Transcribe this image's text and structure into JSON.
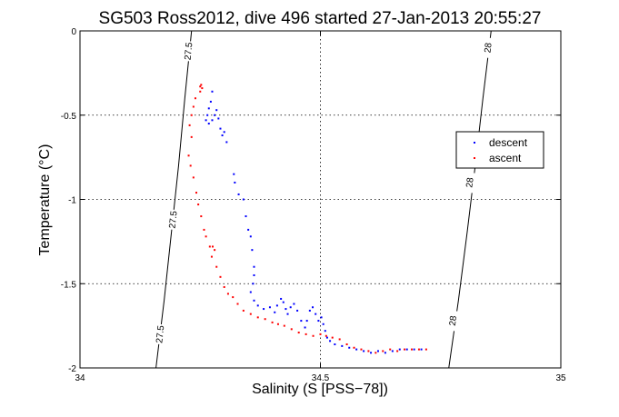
{
  "chart_data": {
    "type": "scatter",
    "title": "SG503 Ross2012, dive 496 started 27-Jan-2013 20:55:27",
    "xlabel": "Salinity (S [PSS−78])",
    "ylabel": "Temperature (°C)",
    "xlim": [
      34,
      35
    ],
    "ylim": [
      -2,
      0
    ],
    "x_tick_labels": [
      "34",
      "34.5",
      "35"
    ],
    "y_tick_labels": [
      "0",
      "-0.5",
      "-1",
      "-1.5",
      "-2"
    ],
    "x_ticks": [
      34,
      34.5,
      35
    ],
    "y_ticks": [
      0,
      -0.5,
      -1,
      -1.5,
      -2
    ],
    "grid": true,
    "legend_position": "right",
    "series": [
      {
        "name": "descent",
        "color": "#0000ff",
        "marker": "point",
        "points": [
          [
            34.275,
            -0.36
          ],
          [
            34.272,
            -0.42
          ],
          [
            34.268,
            -0.46
          ],
          [
            34.265,
            -0.5
          ],
          [
            34.262,
            -0.53
          ],
          [
            34.268,
            -0.55
          ],
          [
            34.275,
            -0.53
          ],
          [
            34.28,
            -0.5
          ],
          [
            34.284,
            -0.47
          ],
          [
            34.288,
            -0.52
          ],
          [
            34.292,
            -0.58
          ],
          [
            34.296,
            -0.62
          ],
          [
            34.3,
            -0.6
          ],
          [
            34.305,
            -0.66
          ],
          [
            34.32,
            -0.85
          ],
          [
            34.322,
            -0.9
          ],
          [
            34.33,
            -0.97
          ],
          [
            34.34,
            -1.0
          ],
          [
            34.345,
            -1.1
          ],
          [
            34.35,
            -1.18
          ],
          [
            34.355,
            -1.22
          ],
          [
            34.358,
            -1.3
          ],
          [
            34.362,
            -1.4
          ],
          [
            34.362,
            -1.45
          ],
          [
            34.36,
            -1.5
          ],
          [
            34.355,
            -1.55
          ],
          [
            34.362,
            -1.6
          ],
          [
            34.37,
            -1.63
          ],
          [
            34.382,
            -1.65
          ],
          [
            34.395,
            -1.64
          ],
          [
            34.405,
            -1.67
          ],
          [
            34.41,
            -1.63
          ],
          [
            34.418,
            -1.59
          ],
          [
            34.423,
            -1.61
          ],
          [
            34.428,
            -1.65
          ],
          [
            34.432,
            -1.68
          ],
          [
            34.438,
            -1.64
          ],
          [
            34.445,
            -1.62
          ],
          [
            34.452,
            -1.66
          ],
          [
            34.46,
            -1.72
          ],
          [
            34.468,
            -1.76
          ],
          [
            34.472,
            -1.72
          ],
          [
            34.478,
            -1.66
          ],
          [
            34.484,
            -1.64
          ],
          [
            34.49,
            -1.68
          ],
          [
            34.496,
            -1.72
          ],
          [
            34.502,
            -1.7
          ],
          [
            34.506,
            -1.74
          ],
          [
            34.51,
            -1.78
          ],
          [
            34.514,
            -1.82
          ],
          [
            34.52,
            -1.84
          ],
          [
            34.53,
            -1.86
          ],
          [
            34.545,
            -1.87
          ],
          [
            34.56,
            -1.88
          ],
          [
            34.575,
            -1.89
          ],
          [
            34.59,
            -1.9
          ],
          [
            34.605,
            -1.91
          ],
          [
            34.62,
            -1.9
          ],
          [
            34.635,
            -1.91
          ],
          [
            34.65,
            -1.9
          ],
          [
            34.665,
            -1.89
          ],
          [
            34.68,
            -1.89
          ],
          [
            34.695,
            -1.89
          ],
          [
            34.71,
            -1.89
          ]
        ]
      },
      {
        "name": "ascent",
        "color": "#ff0000",
        "marker": "point",
        "points": [
          [
            34.25,
            -0.33
          ],
          [
            34.252,
            -0.32
          ],
          [
            34.254,
            -0.34
          ],
          [
            34.25,
            -0.36
          ],
          [
            34.24,
            -0.4
          ],
          [
            34.236,
            -0.45
          ],
          [
            34.232,
            -0.5
          ],
          [
            34.228,
            -0.56
          ],
          [
            34.232,
            -0.63
          ],
          [
            34.226,
            -0.74
          ],
          [
            34.23,
            -0.8
          ],
          [
            34.236,
            -0.87
          ],
          [
            34.242,
            -0.96
          ],
          [
            34.246,
            -1.03
          ],
          [
            34.252,
            -1.1
          ],
          [
            34.258,
            -1.18
          ],
          [
            34.262,
            -1.22
          ],
          [
            34.27,
            -1.28
          ],
          [
            34.276,
            -1.28
          ],
          [
            34.28,
            -1.3
          ],
          [
            34.274,
            -1.34
          ],
          [
            34.284,
            -1.4
          ],
          [
            34.292,
            -1.46
          ],
          [
            34.3,
            -1.52
          ],
          [
            34.308,
            -1.56
          ],
          [
            34.318,
            -1.58
          ],
          [
            34.328,
            -1.62
          ],
          [
            34.34,
            -1.66
          ],
          [
            34.355,
            -1.68
          ],
          [
            34.37,
            -1.7
          ],
          [
            34.385,
            -1.71
          ],
          [
            34.4,
            -1.73
          ],
          [
            34.412,
            -1.74
          ],
          [
            34.425,
            -1.75
          ],
          [
            34.44,
            -1.77
          ],
          [
            34.455,
            -1.79
          ],
          [
            34.47,
            -1.8
          ],
          [
            34.485,
            -1.81
          ],
          [
            34.5,
            -1.8
          ],
          [
            34.512,
            -1.81
          ],
          [
            34.525,
            -1.82
          ],
          [
            34.54,
            -1.83
          ],
          [
            34.555,
            -1.86
          ],
          [
            34.57,
            -1.88
          ],
          [
            34.585,
            -1.89
          ],
          [
            34.6,
            -1.9
          ],
          [
            34.615,
            -1.91
          ],
          [
            34.63,
            -1.9
          ],
          [
            34.645,
            -1.89
          ],
          [
            34.66,
            -1.9
          ],
          [
            34.675,
            -1.89
          ],
          [
            34.69,
            -1.89
          ],
          [
            34.705,
            -1.89
          ],
          [
            34.72,
            -1.89
          ]
        ]
      }
    ],
    "density_contours": [
      {
        "label": "27.5",
        "points": [
          [
            34.158,
            -2.0
          ],
          [
            34.175,
            -1.6
          ],
          [
            34.19,
            -1.2
          ],
          [
            34.205,
            -0.8
          ],
          [
            34.218,
            -0.4
          ],
          [
            34.232,
            0.0
          ]
        ],
        "label_positions": [
          [
            34.166,
            -1.8
          ],
          [
            34.193,
            -1.12
          ],
          [
            34.225,
            -0.12
          ]
        ]
      },
      {
        "label": "28",
        "points": [
          [
            34.767,
            -2.0
          ],
          [
            34.787,
            -1.6
          ],
          [
            34.805,
            -1.2
          ],
          [
            34.822,
            -0.8
          ],
          [
            34.838,
            -0.4
          ],
          [
            34.855,
            0.0
          ]
        ],
        "label_positions": [
          [
            34.775,
            -1.72
          ],
          [
            34.81,
            -0.9
          ],
          [
            34.848,
            -0.1
          ]
        ]
      }
    ]
  }
}
